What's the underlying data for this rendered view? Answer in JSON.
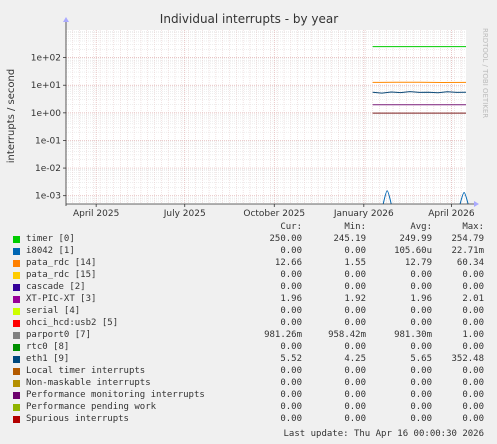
{
  "chart_data": {
    "type": "line",
    "title": "Individual interrupts - by year",
    "ylabel": "interrupts / second",
    "y_scale": "log",
    "ylim": [
      0.0005,
      1000
    ],
    "y_ticks": [
      {
        "value": 100,
        "label": "1e+02"
      },
      {
        "value": 10,
        "label": "1e+01"
      },
      {
        "value": 1,
        "label": "1e+00"
      },
      {
        "value": 0.1,
        "label": "1e-01"
      },
      {
        "value": 0.01,
        "label": "1e-02"
      },
      {
        "value": 0.001,
        "label": "1e-03"
      }
    ],
    "x_range": [
      "2025-03-01",
      "2026-04-16"
    ],
    "x_ticks": [
      {
        "date": "2025-04-01",
        "label": "April 2025"
      },
      {
        "date": "2025-07-01",
        "label": "July 2025"
      },
      {
        "date": "2025-10-01",
        "label": "October 2025"
      },
      {
        "date": "2026-01-01",
        "label": "January 2026"
      },
      {
        "date": "2026-04-01",
        "label": "April 2026"
      }
    ],
    "grid": true,
    "series": [
      {
        "name": "timer [0]",
        "color": "#00cc00",
        "start": "2026-01-10",
        "values": [
          250.0,
          250.0,
          249.9,
          250.0,
          250.0
        ]
      },
      {
        "name": "pata_rdc [14]",
        "color": "#ff8800",
        "start": "2026-01-10",
        "values": [
          12.7,
          12.8,
          12.8,
          12.6,
          12.7
        ]
      },
      {
        "name": "eth1 [9]",
        "color": "#0d4a78",
        "start": "2026-01-10",
        "values": [
          5.6,
          5.2,
          5.7,
          5.4,
          5.9,
          5.5,
          5.6,
          5.3,
          5.8,
          5.5,
          5.6
        ]
      },
      {
        "name": "XT-PIC-XT [3]",
        "color": "#7a1d7a",
        "start": "2026-01-10",
        "values": [
          1.96,
          1.96,
          1.96,
          1.96,
          1.96
        ]
      },
      {
        "name": "parport0 [7]",
        "color": "#7a1d1d",
        "start": "2026-01-10",
        "values": [
          0.98,
          0.98,
          0.98,
          0.98,
          0.98
        ]
      },
      {
        "name": "i8042 [1]",
        "color": "#0066b3",
        "spikes": [
          {
            "date": "2026-01-25",
            "value": 0.0015
          },
          {
            "date": "2026-04-14",
            "value": 0.0013
          }
        ]
      }
    ],
    "last_update": "Last update: Thu Apr 16 00:00:30 2026"
  },
  "watermark": "RRDTOOL / TOBI OETIKER",
  "legend": {
    "headers": [
      "Cur:",
      "Min:",
      "Avg:",
      "Max:"
    ],
    "rows": [
      {
        "name": "timer [0]",
        "color": "#00cc00",
        "cur": "250.00",
        "min": "245.19",
        "avg": "249.99",
        "max": "254.79"
      },
      {
        "name": "i8042 [1]",
        "color": "#0066b3",
        "cur": "0.00",
        "min": "0.00",
        "avg": "105.60u",
        "max": "22.71m"
      },
      {
        "name": "pata_rdc [14]",
        "color": "#ff8000",
        "cur": "12.66",
        "min": "1.55",
        "avg": "12.79",
        "max": "60.34"
      },
      {
        "name": "pata_rdc [15]",
        "color": "#ffcc00",
        "cur": "0.00",
        "min": "0.00",
        "avg": "0.00",
        "max": "0.00"
      },
      {
        "name": "cascade [2]",
        "color": "#330099",
        "cur": "0.00",
        "min": "0.00",
        "avg": "0.00",
        "max": "0.00"
      },
      {
        "name": "XT-PIC-XT [3]",
        "color": "#990099",
        "cur": "1.96",
        "min": "1.92",
        "avg": "1.96",
        "max": "2.01"
      },
      {
        "name": "serial [4]",
        "color": "#ccff00",
        "cur": "0.00",
        "min": "0.00",
        "avg": "0.00",
        "max": "0.00"
      },
      {
        "name": "ohci_hcd:usb2 [5]",
        "color": "#ff0000",
        "cur": "0.00",
        "min": "0.00",
        "avg": "0.00",
        "max": "0.00"
      },
      {
        "name": "parport0 [7]",
        "color": "#808080",
        "cur": "981.26m",
        "min": "958.42m",
        "avg": "981.30m",
        "max": "1.00"
      },
      {
        "name": "rtc0 [8]",
        "color": "#008f00",
        "cur": "0.00",
        "min": "0.00",
        "avg": "0.00",
        "max": "0.00"
      },
      {
        "name": "eth1 [9]",
        "color": "#00487d",
        "cur": "5.52",
        "min": "4.25",
        "avg": "5.65",
        "max": "352.48"
      },
      {
        "name": "Local timer interrupts",
        "color": "#b35a00",
        "cur": "0.00",
        "min": "0.00",
        "avg": "0.00",
        "max": "0.00"
      },
      {
        "name": "Non-maskable interrupts",
        "color": "#b38f00",
        "cur": "0.00",
        "min": "0.00",
        "avg": "0.00",
        "max": "0.00"
      },
      {
        "name": "Performance monitoring interrupts",
        "color": "#6b006b",
        "cur": "0.00",
        "min": "0.00",
        "avg": "0.00",
        "max": "0.00"
      },
      {
        "name": "Performance pending work",
        "color": "#8fb300",
        "cur": "0.00",
        "min": "0.00",
        "avg": "0.00",
        "max": "0.00"
      },
      {
        "name": "Spurious interrupts",
        "color": "#b30000",
        "cur": "0.00",
        "min": "0.00",
        "avg": "0.00",
        "max": "0.00"
      }
    ]
  }
}
